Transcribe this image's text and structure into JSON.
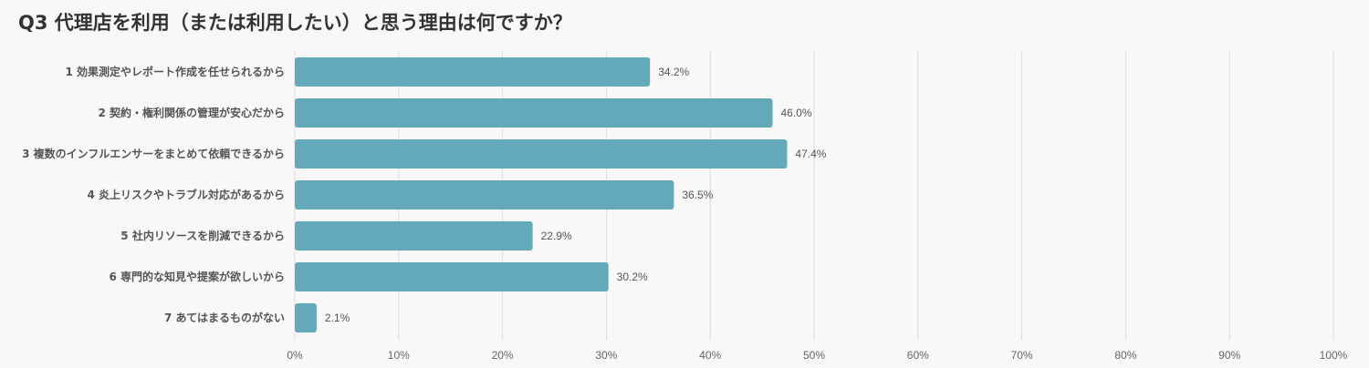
{
  "colors": {
    "background": "#f8f8f8",
    "bar": "#63a9ba",
    "grid": "#dcdcdc",
    "text": "#555555",
    "title": "#333333"
  },
  "chart_data": {
    "type": "bar",
    "orientation": "horizontal",
    "title": "Q3 代理店を利用（または利用したい）と思う理由は何ですか？",
    "categories": [
      "1 効果測定やレポート作成を任せられるから",
      "2 契約・権利関係の管理が安心だから",
      "3 複数のインフルエンサーをまとめて依頼できるから",
      "4 炎上リスクやトラブル対応があるから",
      "5 社内リソースを削減できるから",
      "6 専門的な知見や提案が欲しいから",
      "7 あてはまるものがない"
    ],
    "values": [
      34.2,
      46.0,
      47.4,
      36.5,
      22.9,
      30.2,
      2.1
    ],
    "value_labels": [
      "34.2%",
      "46.0%",
      "47.4%",
      "36.5%",
      "22.9%",
      "30.2%",
      "2.1%"
    ],
    "xlim": [
      0,
      100
    ],
    "x_ticks": [
      0,
      10,
      20,
      30,
      40,
      50,
      60,
      70,
      80,
      90,
      100
    ],
    "x_tick_labels": [
      "0%",
      "10%",
      "20%",
      "30%",
      "40%",
      "50%",
      "60%",
      "70%",
      "80%",
      "90%",
      "100%"
    ],
    "grid": "vertical",
    "legend": "none"
  }
}
